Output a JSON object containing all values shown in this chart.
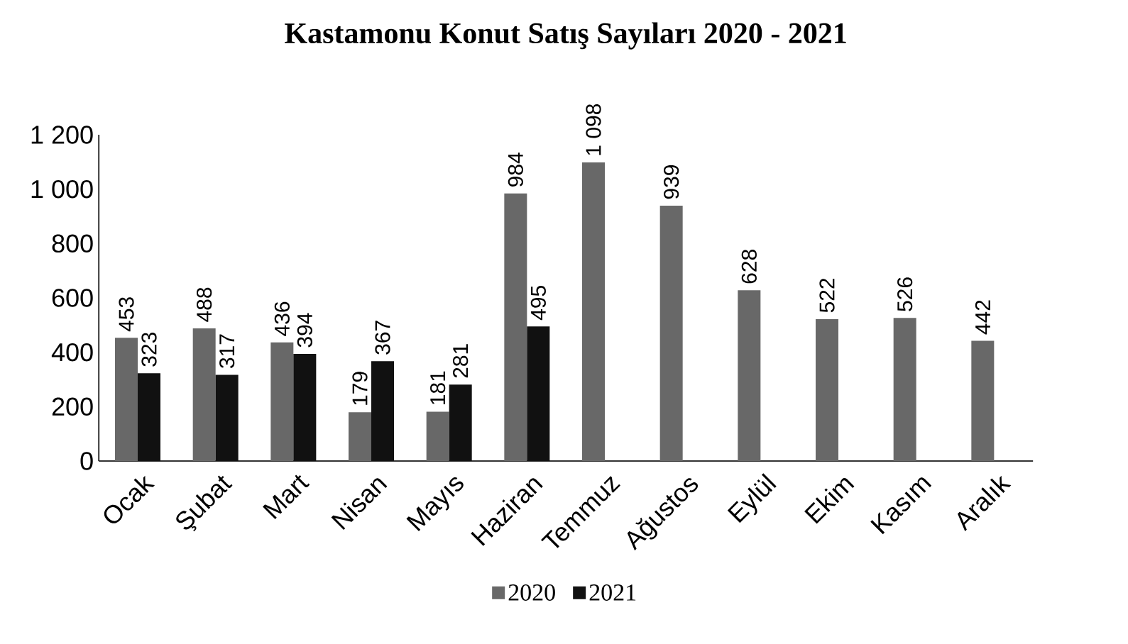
{
  "chart_data": {
    "type": "bar",
    "title": "Kastamonu Konut Satış Sayıları 2020 - 2021",
    "categories": [
      "Ocak",
      "Şubat",
      "Mart",
      "Nisan",
      "Mayıs",
      "Haziran",
      "Temmuz",
      "Ağustos",
      "Eylül",
      "Ekim",
      "Kasım",
      "Aralık"
    ],
    "series": [
      {
        "name": "2020",
        "color": "#686868",
        "values": [
          453,
          488,
          436,
          179,
          181,
          984,
          1098,
          939,
          628,
          522,
          526,
          442
        ],
        "value_labels": [
          "453",
          "488",
          "436",
          "179",
          "181",
          "984",
          "1 098",
          "939",
          "628",
          "522",
          "526",
          "442"
        ]
      },
      {
        "name": "2021",
        "color": "#111111",
        "values": [
          323,
          317,
          394,
          367,
          281,
          495,
          null,
          null,
          null,
          null,
          null,
          null
        ],
        "value_labels": [
          "323",
          "317",
          "394",
          "367",
          "281",
          "495",
          null,
          null,
          null,
          null,
          null,
          null
        ]
      }
    ],
    "ylim": [
      0,
      1200
    ],
    "yticks": [
      0,
      200,
      400,
      600,
      800,
      {
        "value": 1000,
        "label": "1 000"
      },
      {
        "value": 1200,
        "label": "1 200"
      }
    ],
    "legend": "bottom",
    "grid": false
  }
}
